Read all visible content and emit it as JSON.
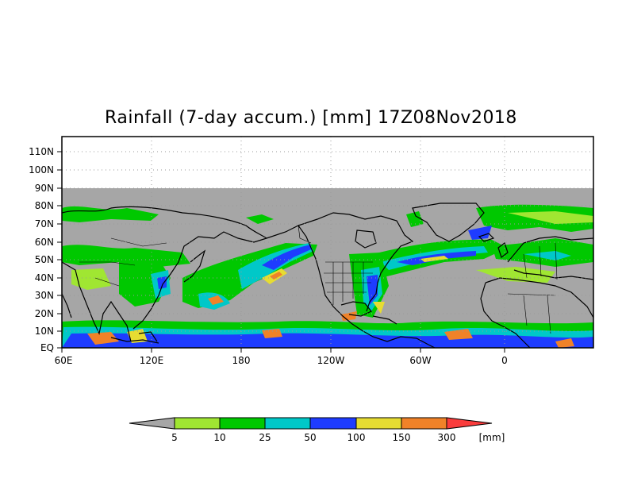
{
  "title": "Rainfall (7-day accum.) [mm] 17Z08Nov2018",
  "lat_labels": [
    "110N",
    "100N",
    "90N",
    "80N",
    "70N",
    "60N",
    "50N",
    "40N",
    "30N",
    "20N",
    "10N",
    "EQ"
  ],
  "lon_labels": [
    "60E",
    "120E",
    "180",
    "120W",
    "60W",
    "0"
  ],
  "colorbar": {
    "values": [
      "5",
      "10",
      "25",
      "50",
      "100",
      "150",
      "300"
    ],
    "unit": "[mm]",
    "colors": [
      "#a6a6a6",
      "#a0e632",
      "#00c800",
      "#00c8c8",
      "#1e3cff",
      "#e6dc32",
      "#f08228",
      "#fa3c3c"
    ]
  },
  "map_colors": {
    "no_data": "#a6a6a6",
    "background": "#ffffff",
    "coast": "#000000",
    "grid": "#999999"
  }
}
